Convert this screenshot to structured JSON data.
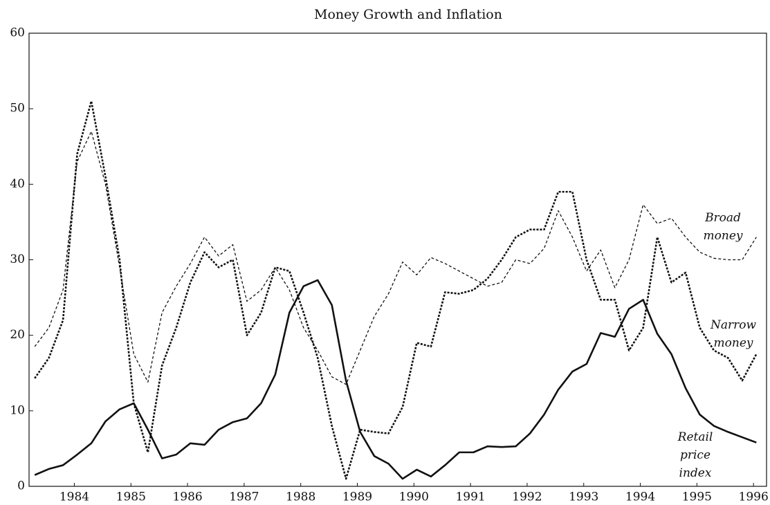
{
  "chart_data": {
    "type": "line",
    "title": "Money Growth and Inflation",
    "x": [
      1983.75,
      1984,
      1984.25,
      1984.5,
      1984.75,
      1985,
      1985.25,
      1985.5,
      1985.75,
      1986,
      1986.25,
      1986.5,
      1986.75,
      1987,
      1987.25,
      1987.5,
      1987.75,
      1988,
      1988.25,
      1988.5,
      1988.75,
      1989,
      1989.25,
      1989.5,
      1989.75,
      1990,
      1990.25,
      1990.5,
      1990.75,
      1991,
      1991.25,
      1991.5,
      1991.75,
      1992,
      1992.25,
      1992.5,
      1992.75,
      1993,
      1993.25,
      1993.5,
      1993.75,
      1994,
      1994.25,
      1994.5,
      1994.75,
      1995,
      1995.25,
      1995.5,
      1995.75,
      1996,
      1996.25,
      1996.5
    ],
    "series": [
      {
        "name": "Broad money",
        "color": "#111",
        "dash": "4,3",
        "width": 1.3,
        "values": [
          18.5,
          21,
          26,
          43,
          47,
          40,
          29,
          17.5,
          13.8,
          23,
          26.5,
          29.5,
          33,
          30.5,
          32,
          24.5,
          26,
          29,
          26,
          21,
          18,
          14.5,
          13.5,
          18,
          22.5,
          25.5,
          29.7,
          28,
          30.3,
          29.5,
          28.5,
          27.5,
          26.5,
          27,
          30,
          29.5,
          31.5,
          36.5,
          33,
          28.5,
          31.3,
          26.3,
          30,
          37.3,
          34.8,
          35.5,
          33,
          31,
          30.2,
          30,
          30,
          33
        ]
      },
      {
        "name": "Narrow money",
        "color": "#111",
        "dash": "3,2",
        "width": 2.6,
        "values": [
          14.3,
          17,
          22,
          44,
          51,
          41,
          30,
          11,
          4.5,
          16,
          21,
          27,
          31,
          29,
          30,
          20,
          23,
          29,
          28.5,
          23,
          17,
          8,
          1,
          7.5,
          7.2,
          7,
          10.5,
          19,
          18.5,
          25.7,
          25.5,
          26,
          27.5,
          30,
          33,
          34,
          34,
          39,
          39,
          30,
          24.7,
          24.7,
          18,
          21,
          33,
          27,
          28.3,
          21,
          18,
          17,
          14,
          17.5
        ]
      },
      {
        "name": "Retail price index",
        "color": "#111",
        "dash": "none",
        "width": 2.6,
        "values": [
          1.5,
          2.3,
          2.8,
          4.2,
          5.7,
          8.6,
          10.2,
          11,
          7.5,
          3.7,
          4.2,
          5.7,
          5.5,
          7.5,
          8.5,
          9,
          11,
          14.8,
          23,
          26.5,
          27.3,
          24,
          14,
          7.2,
          4,
          3,
          1,
          2.2,
          1.3,
          2.8,
          4.5,
          4.5,
          5.3,
          5.2,
          5.3,
          7,
          9.5,
          12.8,
          15.2,
          16.2,
          20.3,
          19.8,
          23.5,
          24.7,
          20.2,
          17.5,
          13,
          9.5,
          8,
          7.2,
          6.5,
          5.8
        ]
      }
    ],
    "xlim": [
      1983.65,
      1996.68
    ],
    "ylim": [
      0,
      60
    ],
    "yticks": [
      0,
      10,
      20,
      30,
      40,
      50,
      60
    ],
    "xticks": [
      {
        "value": 1984.45,
        "label": "1984"
      },
      {
        "value": 1985.45,
        "label": "1985"
      },
      {
        "value": 1986.45,
        "label": "1986"
      },
      {
        "value": 1987.45,
        "label": "1987"
      },
      {
        "value": 1988.45,
        "label": "1988"
      },
      {
        "value": 1989.45,
        "label": "1989"
      },
      {
        "value": 1990.45,
        "label": "1990"
      },
      {
        "value": 1991.45,
        "label": "1991"
      },
      {
        "value": 1992.45,
        "label": "1992"
      },
      {
        "value": 1993.45,
        "label": "1993"
      },
      {
        "value": 1994.45,
        "label": "1994"
      },
      {
        "value": 1995.45,
        "label": "1995"
      },
      {
        "value": 1996.45,
        "label": "1996"
      }
    ]
  }
}
